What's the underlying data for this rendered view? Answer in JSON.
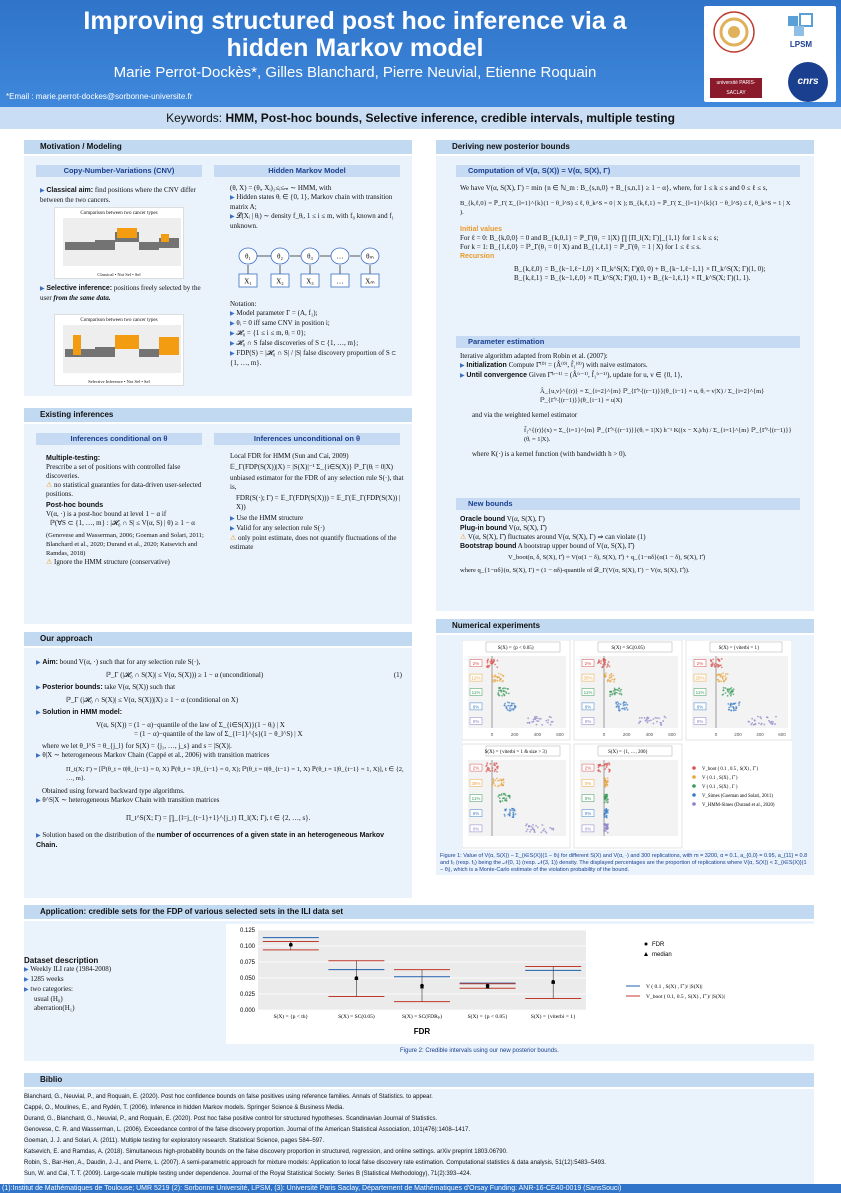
{
  "header": {
    "title": "Improving structured post hoc inference via a\nhidden Markov model",
    "authors": "Marie Perrot-Dockès*, Gilles Blanchard, Pierre Neuvial, Etienne Roquain",
    "email": "*Email : marie.perrot-dockes@sorbonne-universite.fr",
    "logos": [
      "LMO",
      "LPSM",
      "université PARIS-SACLAY",
      "cnrs"
    ]
  },
  "keywords": {
    "label": "Keywords:",
    "text": "HMM, Post-hoc bounds, Selective inference, credible intervals, multiple testing"
  },
  "motivation": {
    "head": "Motivation / Modeling",
    "cnv": {
      "head": "Copy-Number-Variations (CNV)",
      "aim_label": "Classical aim:",
      "aim_text": "find positions where the CNV differ between the two cancers.",
      "fig1_title": "Comparison between two cancer types",
      "fig1_legend": "Classical  •  Not Sel  •  Sel",
      "sel_label": "Selective inference:",
      "sel_text": "positions freely selected by the user",
      "sel_em": "from the same data.",
      "fig2_title": "Comparison between two cancer types",
      "fig2_legend": "Selective Inference  •  Not Sel  •  Sel",
      "xlabel": "Position",
      "ylabel": "Statistic"
    },
    "hmm": {
      "head": "Hidden Markov Model",
      "l1": "(θ, X) = (θᵢ, Xᵢ)₁≤ᵢ≤ₘ ∼ HMM, with",
      "l2": "Hidden states θᵢ ∈ {0, 1}, Markov chain with transition matrix A;",
      "l3": "𝓛(Xᵢ | θᵢ) ∼ density f_θᵢ, 1 ≤ i ≤ m, with f₀ known and f₁ unknown.",
      "nodes_theta": [
        "θ₁",
        "θ₂",
        "θ₃",
        "…",
        "θₘ"
      ],
      "nodes_x": [
        "X₁",
        "X₂",
        "X₃",
        "…",
        "Xₘ"
      ],
      "notation": "Notation:",
      "n1": "Model parameter Γ = (A, f₁);",
      "n2": "θᵢ = 0 iff same CNV in position i;",
      "n3": "𝓗₀ = {1 ≤ i ≤ m, θᵢ = 0};",
      "n4": "𝓗₀ ∩ S false discoveries of S ⊂ {1, …, m};",
      "n5": "FDP(S) = |𝓗₀ ∩ S| / |S| false discovery proportion of S ⊂ {1, …, m}."
    }
  },
  "existing": {
    "head": "Existing inferences",
    "cond": {
      "head": "Inferences conditional on θ",
      "mt": "Multiple-testing:",
      "mt_text": "Prescribe a set of positions with controlled false discoveries.",
      "w1": "no statistical guaranties for data-driven user-selected positions.",
      "ph": "Post-hoc bounds",
      "ph_text": "V(α, ·) is a post-hoc bound at level 1 − α if",
      "ph_eq": "ℙ(∀S ⊂ {1, …, m} : |𝓗₀ ∩ S| ≤ V(α, S) | θ) ≥ 1 − α",
      "refs": "(Genovese and Wasserman, 2006; Goeman and Solari, 2011; Blanchard et al., 2020; Durand et al., 2020; Katsevich and Ramdas, 2018)",
      "w2": "Ignore the HMM structure (conservative)"
    },
    "uncond": {
      "head": "Inferences unconditional on θ",
      "l1": "Local FDR for HMM (Sun and Cai, 2009)",
      "eq1": "𝔼_Γ(FDP(S(X))|X) = |S(X)|⁻¹ Σ_{i∈S(X)} ℙ_Γ(θᵢ = 0|X)",
      "l2": "unbiased estimator for the FDR of any selection rule S(·), that is,",
      "eq2": "FDR(S(·); Γ) = 𝔼_Γ(FDP(S(X))) = 𝔼_Γ(𝔼_Γ(FDP(S(X)) | X))",
      "b1": "Use the HMM structure",
      "b2": "Valid for any selection rule S(·)",
      "w": "only point estimate, does not quantify fluctuations of the estimate"
    }
  },
  "approach": {
    "head": "Our approach",
    "aim": "Aim:",
    "aim_text": "bound V(α, ·) such that for any selection rule S(·),",
    "eq_uncond": "ℙ_Γ (|𝓗₀ ∩ S(X)| ≤ V(α, S(X))) ≥ 1 − α   (unconditional)",
    "eq_num": "(1)",
    "pb": "Posterior bounds:",
    "pb_text": "take V(α, S(X)) such that",
    "eq_cond": "ℙ_Γ (|𝓗₀ ∩ S(X)| ≤ V(α, S(X))|X) ≥ 1 − α   (conditional on X)",
    "sol": "Solution in HMM model:",
    "eq_sol1": "V(α, S(X)) = (1 − α)−quantile of the law of Σ_{i∈S(X)}(1 − θᵢ) | X",
    "eq_sol2": "= (1 − α)−quantile of the law of Σ_{l=1}^{s}(1 − θ_l^S) | X",
    "where": "where we let θ_l^S = θ_{j_l} for S(X) = {j₁, …, j_s} and s = |S(X)|.",
    "b1": "θ|X ∼ heterogeneous Markov Chain (Cappé et al., 2006) with transition matrices",
    "eq_pi": "Π_t(X; Γ) = [ℙ(θ_t = 0|θ_{t−1} = 0, X)  ℙ(θ_t = 1|θ_{t−1} = 0, X); ℙ(θ_t = 0|θ_{t−1} = 1, X)  ℙ(θ_t = 1|θ_{t−1} = 1, X)],  t ∈ {2, …, m}.",
    "fb": "Obtained using forward backward type algorithms.",
    "b2": "θ^S|X ∼ heterogeneous Markov Chain with transition matrices",
    "eq_pis": "Π_t^S(X; Γ) = ∏_{l=j_{t−1}+1}^{j_t} Π_l(X; Γ),  t ∈ {2, …, s}.",
    "b3a": "Solution based on the distribution of the",
    "b3b": "number of occurrences of a given state in an heterogeneous Markov Chain."
  },
  "deriving": {
    "head": "Deriving new posterior bounds",
    "comp": {
      "head": "Computation of V(α, S(X)) = V(α, S(X), Γ)",
      "l1": "We have V(α, S(X), Γ) = min {n ∈ ℕ_m : B_{s,n,0} + B_{s,n,1} ≥ 1 − α}, where, for 1 ≤ k ≤ s and 0 ≤ ℓ ≤ s,",
      "eq1": "B_{k,ℓ,0} = ℙ_Γ( Σ_{l=1}^{k}(1 − θ_l^S) ≤ ℓ, θ_k^S = 0 | X );   B_{k,ℓ,1} = ℙ_Γ( Σ_{l=1}^{k}(1 − θ_l^S) ≤ ℓ, θ_k^S = 1 | X ).",
      "init": "Initial values",
      "i1": "For ℓ = 0: B_{k,0,0} = 0 and B_{k,0,1} = ℙ_Γ(θ₁ = 1|X) ∏ [Π_l(X; Γ)]_{1,1} for 1 ≤ k ≤ s;",
      "i2": "For k = 1: B_{1,ℓ,0} = ℙ_Γ(θ₁ = 0 | X) and B_{1,ℓ,1} = ℙ_Γ(θ₁ = 1 | X) for 1 ≤ ℓ ≤ s.",
      "rec": "Recursion",
      "r1": "B_{k,ℓ,0} = B_{k−1,ℓ−1,0} × Π_k^S(X; Γ)(0, 0) + B_{k−1,ℓ−1,1} × Π_k^S(X; Γ)(1, 0);",
      "r2": "B_{k,ℓ,1} = B_{k−1,ℓ,0} × Π_k^S(X; Γ)(0, 1) + B_{k−1,ℓ,1} × Π_k^S(X; Γ)(1, 1)."
    },
    "param": {
      "head": "Parameter estimation",
      "l1": "Iterative algorithm adapted from Robin et al. (2007):",
      "init": "Initialization",
      "init_text": "Compute Γ̂⁽⁰⁾ = (Â⁽⁰⁾, f̂₁⁽⁰⁾) with naive estimators.",
      "conv": "Until convergence",
      "conv_text": "Given Γ̂⁽ʳ⁻¹⁾ = (Â⁽ʳ⁻¹⁾, f̂₁⁽ʳ⁻¹⁾), update for u, v ∈ {0, 1},",
      "eqA": "Â_{u,v}^{(r)} = Σ_{i=2}^{m} ℙ_{Γ̂^{(r−1)}}(θ_{i−1} = u, θᵢ = v|X) / Σ_{i=2}^{m} ℙ_{Γ̂^{(r−1)}}(θ_{i−1} = u|X)",
      "kern": "and via the weighted kernel estimator",
      "eqF": "f̂₁^{(r)}(x) = Σ_{i=1}^{m} ℙ_{Γ̂^{(r−1)}}(θᵢ = 1|X) h⁻¹ K((x − Xᵢ)/h) / Σ_{i=1}^{m} ℙ_{Γ̂^{(r−1)}}(θᵢ = 1|X).",
      "where": "where K(·) is a kernel function (with bandwidth h > 0)."
    },
    "newb": {
      "head": "New bounds",
      "o": "Oracle bound",
      "o_eq": "V(α, S(X), Γ)",
      "p": "Plug-in bound",
      "p_eq": "V(α, S(X), Γ̂)",
      "w": "V(α, S(X), Γ̂) fluctuates around V(α, S(X), Γ) ⇒ can violate (1)",
      "bs": "Bootstrap bound",
      "bs_text": "A bootstrap upper bound of V(α, S(X), Γ̂)",
      "bs_eq": "V_boot(α, δ, S(X), Γ̂) = V(α(1 − δ), S(X), Γ̂) + q_{1−αδ}(α(1 − δ), S(X), Γ̂)",
      "bs_where": "where q_{1−αδ}(α, S(X), Γ) = (1 − αδ)-quantile of 𝒟_Γ(V(α, S(X), Γ) − V(α, S(X), Γ̂))."
    }
  },
  "numerical": {
    "head": "Numerical experiments",
    "panels": [
      "S(X) = {p < 0.05}",
      "S(X) = SC(0.05)",
      "S(X) = {viterbi = 1}",
      "S(X) = {viterbi = 1 & size > 3}",
      "S(X) = {1, …, 200}"
    ],
    "xticks": [
      "0",
      "200",
      "400",
      "600"
    ],
    "legend": [
      "V_boot ( 0.1 , 0.5 , S(X) , Γ̂ )",
      "V ( 0.1 , S(X) , Γ̂ )",
      "V ( 0.1 , S(X) , Γ )",
      "V_Simes (Goeman and Solari, 2011)",
      "V_HMM-Simes (Durand et al., 2020)"
    ],
    "legend_colors": [
      "#d9534f",
      "#e8a33d",
      "#3a9a5a",
      "#3a7ec8",
      "#8a7fc8"
    ],
    "pct": [
      [
        "2%",
        "12%",
        "11%",
        "6%",
        "0%"
      ],
      [
        "2%",
        "35%",
        "11%",
        "6%",
        "0%"
      ],
      [
        "2%",
        "25%",
        "11%",
        "6%",
        "0%"
      ],
      [
        "2%",
        "38%",
        "11%",
        "6%",
        "0%"
      ],
      [
        "2%",
        "0%",
        "0%",
        "0%",
        "0%"
      ]
    ],
    "caption": "Figure 1: Value of V(α, S(X)) − Σ_{i∈S(X)}(1 − θᵢ) for different S(X) and V(α, ·) and 300 replications, with m = 3200, α = 0.1, a_{0,0} = 0.95, a_{11} = 0.8 and f₀ (resp. f₁) being the 𝒩(0, 1) (resp. 𝒩(3, 1)) density. The displayed percentages are the proportion of replications where V(α, S(X)) < Σ_{i∈S(X)}(1 − θᵢ), which is a Monte-Carlo estimate of the violation probability of the bound."
  },
  "application": {
    "head": "Application: credible sets for the FDP of various selected sets in the ILI data set",
    "ds_head": "Dataset description",
    "ds": [
      "Weekly ILI rate (1984-2008)",
      "1285 weeks",
      "two categories:"
    ],
    "ds_sub": [
      "usual (H₀)",
      "aberration(H₁)"
    ],
    "chart_data": {
      "type": "scatter",
      "categories": [
        "S(X) = {p < th}",
        "S(X) = SC(0.05)",
        "S(X) = SC(FDRₚ)",
        "S(X) = {p < 0.05}",
        "S(X) = {viterbi = 1}"
      ],
      "fdr": [
        0.102,
        0.05,
        0.038,
        0.038,
        0.044
      ],
      "median": [
        0.103,
        0.05,
        0.037,
        0.037,
        0.044
      ],
      "v_plugin_upper": [
        0.113,
        0.063,
        0.052,
        0.042,
        0.062
      ],
      "v_boot_upper": [
        0.107,
        0.077,
        0.063,
        0.041,
        0.068
      ],
      "v_boot_lower": [
        0.094,
        0.021,
        0.013,
        0.034,
        0.018
      ],
      "yticks": [
        "0.000",
        "0.025",
        "0.050",
        "0.075",
        "0.100",
        "0.125"
      ],
      "ylim": [
        0,
        0.125
      ],
      "xlabel": "FDR",
      "legend_points": [
        "FDR",
        "median"
      ],
      "legend_lines": [
        "V ( 0.1 , S(X) , Γ̂ )/ |S(X)|",
        "V_boot ( 0.1, 0.5 , S(X) , Γ̂ )/ |S(X)|"
      ],
      "colors": {
        "plugin": "#1f5fae",
        "boot": "#c0392b"
      }
    },
    "caption": "Figure 2: Credible intervals using our new posterior bounds."
  },
  "biblio": {
    "head": "Biblio",
    "items": [
      "Blanchard, G., Neuvial, P., and Roquain, E. (2020). Post hoc confidence bounds on false positives using reference families. Annals of Statistics. to appear.",
      "Cappé, O., Moulines, E., and Rydén, T. (2006). Inference in hidden Markov models. Springer Science & Business Media.",
      "Durand, G., Blanchard, G., Neuvial, P., and Roquain, E. (2020). Post hoc false positive control for structured hypotheses. Scandinavian Journal of Statistics.",
      "Genovese, C. R. and Wasserman, L. (2006). Exceedance control of the false discovery proportion. Journal of the American Statistical Association, 101(476):1408–1417.",
      "Goeman, J. J. and Solari, A. (2011). Multiple testing for exploratory research. Statistical Science, pages 584–597.",
      "Katsevich, E. and Ramdas, A. (2018). Simultaneous high-probability bounds on the false discovery proportion in structured, regression, and online settings. arXiv preprint 1803.06790.",
      "Robin, S., Bar-Hen, A., Daudin, J.-J., and Pierre, L. (2007). A semi-parametric approach for mixture models: Application to local false discovery rate estimation. Computational statistics & data analysis, 51(12):5483–5493.",
      "Sun, W. and Cai, T. T. (2009). Large-scale multiple testing under dependence. Journal of the Royal Statistical Society: Series B (Statistical Methodology), 71(2):393–424."
    ]
  },
  "footer": "(1):Institut de Mathématiques de Toulouse; UMR 5219 (2): Sorbonne Université, LPSM, (3): Université Paris Saclay, Département de Mathématiques d'Orsay Funding: ANR-16-CE40-0019 (SansSouci)"
}
